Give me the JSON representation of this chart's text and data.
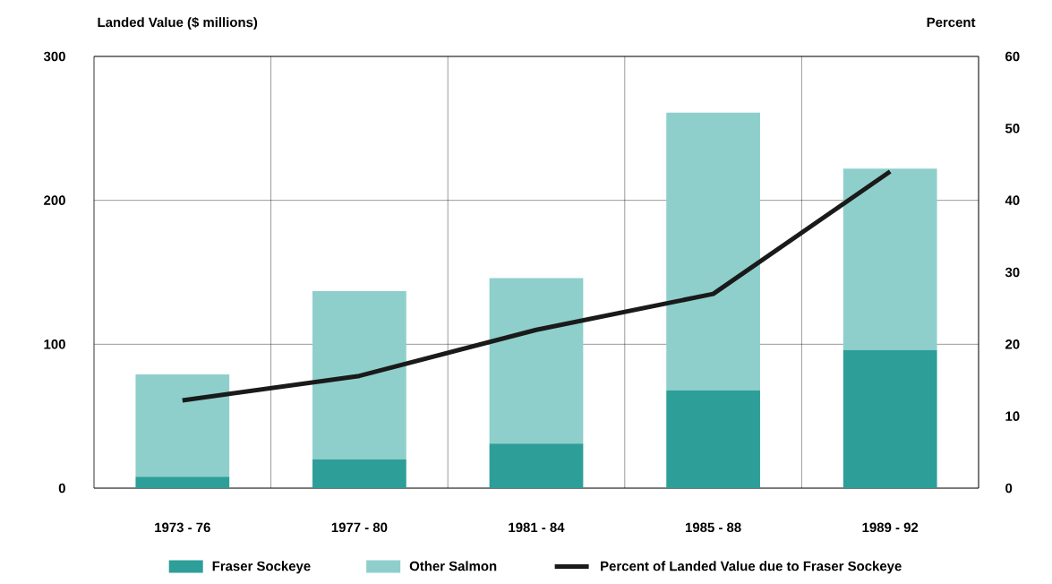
{
  "chart_data": {
    "type": "bar",
    "stacked": true,
    "ylabel": "Landed Value ($ millions)",
    "y2label": "Percent",
    "categories": [
      "1973 - 76",
      "1977 - 80",
      "1981 - 84",
      "1985 - 88",
      "1989 - 92"
    ],
    "series": [
      {
        "name": "Fraser Sockeye",
        "color": "#2e9e99",
        "values": [
          8,
          20,
          31,
          68,
          96
        ]
      },
      {
        "name": "Other Salmon",
        "color": "#8ecfcc",
        "values": [
          71,
          117,
          115,
          193,
          126
        ]
      },
      {
        "name": "Percent of Landed Value due to Fraser Sockeye",
        "type": "line",
        "axis": "y2",
        "color": "#1a1a1a",
        "values": [
          12.2,
          15.6,
          22,
          27,
          44
        ]
      }
    ],
    "ylim": [
      0,
      300
    ],
    "yticks": [
      0,
      100,
      200,
      300
    ],
    "y2lim": [
      0,
      60
    ],
    "y2ticks": [
      0,
      10,
      20,
      30,
      40,
      50,
      60
    ],
    "grid": true,
    "legend": "bottom"
  }
}
